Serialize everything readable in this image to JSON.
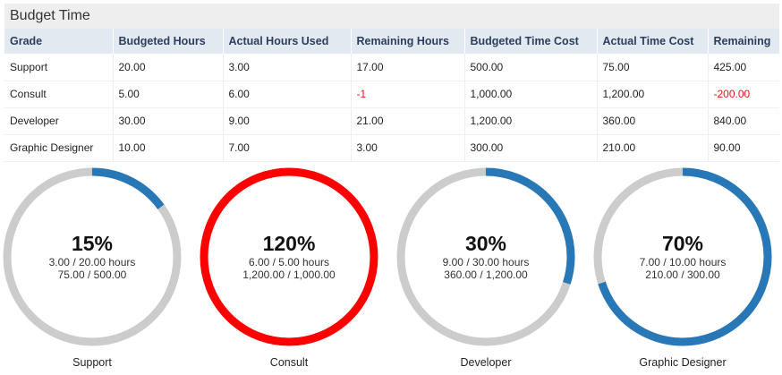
{
  "panel": {
    "title": "Budget Time"
  },
  "table": {
    "columns": [
      "Grade",
      "Budgeted Hours",
      "Actual Hours Used",
      "Remaining Hours",
      "Budgeted Time Cost",
      "Actual Time Cost",
      "Remaining"
    ],
    "rows": [
      [
        "Support",
        "20.00",
        "3.00",
        "17.00",
        "500.00",
        "75.00",
        "425.00"
      ],
      [
        "Consult",
        "5.00",
        "6.00",
        "-1",
        "1,000.00",
        "1,200.00",
        "-200.00"
      ],
      [
        "Developer",
        "30.00",
        "9.00",
        "21.00",
        "1,200.00",
        "360.00",
        "840.00"
      ],
      [
        "Graphic Designer",
        "10.00",
        "7.00",
        "3.00",
        "300.00",
        "210.00",
        "90.00"
      ]
    ]
  },
  "gauges": [
    {
      "label": "Support",
      "percent_text": "15%",
      "percent": 15,
      "hours_text": "3.00 / 20.00 hours",
      "cost_text": "75.00 / 500.00",
      "over_budget": false
    },
    {
      "label": "Consult",
      "percent_text": "120%",
      "percent": 120,
      "hours_text": "6.00 / 5.00 hours",
      "cost_text": "1,200.00 / 1,000.00",
      "over_budget": true
    },
    {
      "label": "Developer",
      "percent_text": "30%",
      "percent": 30,
      "hours_text": "9.00 / 30.00 hours",
      "cost_text": "360.00 / 1,200.00",
      "over_budget": false
    },
    {
      "label": "Graphic Designer",
      "percent_text": "70%",
      "percent": 70,
      "hours_text": "7.00 / 10.00 hours",
      "cost_text": "210.00 / 300.00",
      "over_budget": false
    }
  ],
  "colors": {
    "track": "#cccccc",
    "progress": "#2878b8",
    "over_budget": "#ff0000",
    "negative_text": "#e8161b"
  }
}
